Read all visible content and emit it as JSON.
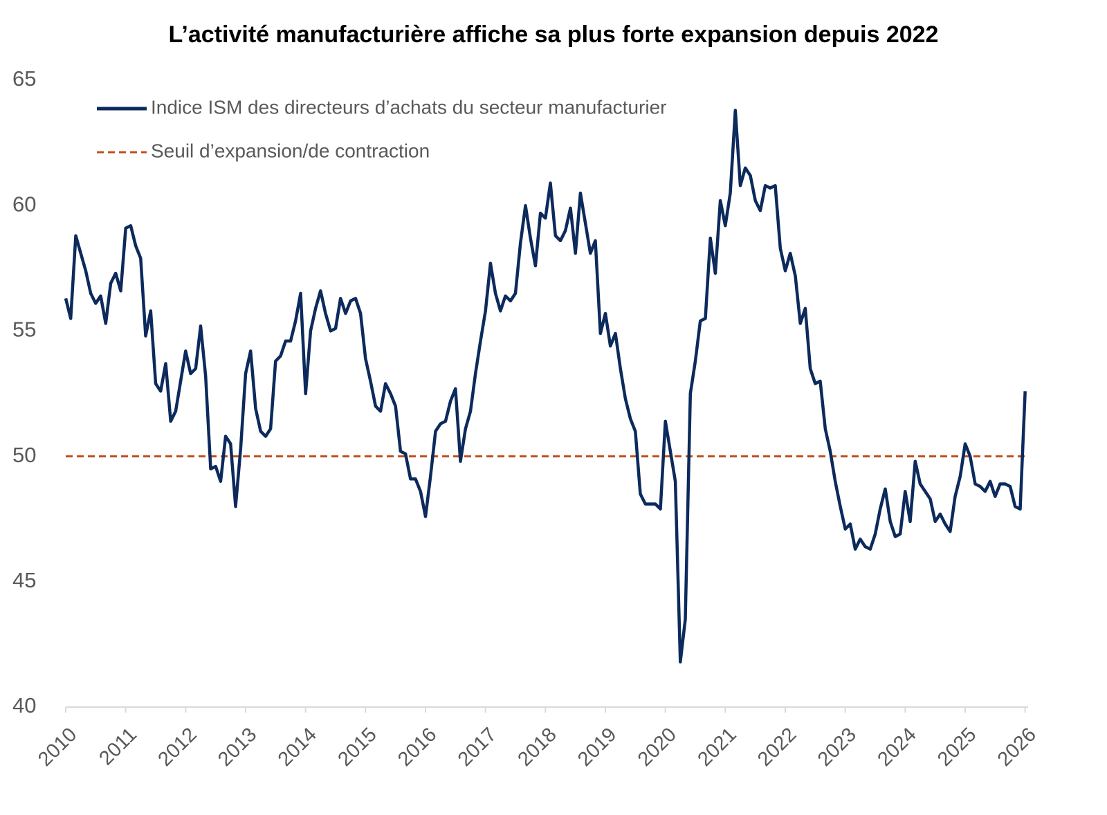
{
  "chart_data": {
    "type": "line",
    "title": "L’activité manufacturière affiche sa plus forte expansion depuis 2022",
    "x": [
      2010,
      2010.083,
      2010.167,
      2010.25,
      2010.333,
      2010.417,
      2010.5,
      2010.583,
      2010.667,
      2010.75,
      2010.833,
      2010.917,
      2011,
      2011.083,
      2011.167,
      2011.25,
      2011.333,
      2011.417,
      2011.5,
      2011.583,
      2011.667,
      2011.75,
      2011.833,
      2011.917,
      2012,
      2012.083,
      2012.167,
      2012.25,
      2012.333,
      2012.417,
      2012.5,
      2012.583,
      2012.667,
      2012.75,
      2012.833,
      2012.917,
      2013,
      2013.083,
      2013.167,
      2013.25,
      2013.333,
      2013.417,
      2013.5,
      2013.583,
      2013.667,
      2013.75,
      2013.833,
      2013.917,
      2014,
      2014.083,
      2014.167,
      2014.25,
      2014.333,
      2014.417,
      2014.5,
      2014.583,
      2014.667,
      2014.75,
      2014.833,
      2014.917,
      2015,
      2015.083,
      2015.167,
      2015.25,
      2015.333,
      2015.417,
      2015.5,
      2015.583,
      2015.667,
      2015.75,
      2015.833,
      2015.917,
      2016,
      2016.083,
      2016.167,
      2016.25,
      2016.333,
      2016.417,
      2016.5,
      2016.583,
      2016.667,
      2016.75,
      2016.833,
      2016.917,
      2017,
      2017.083,
      2017.167,
      2017.25,
      2017.333,
      2017.417,
      2017.5,
      2017.583,
      2017.667,
      2017.75,
      2017.833,
      2017.917,
      2018,
      2018.083,
      2018.167,
      2018.25,
      2018.333,
      2018.417,
      2018.5,
      2018.583,
      2018.667,
      2018.75,
      2018.833,
      2018.917,
      2019,
      2019.083,
      2019.167,
      2019.25,
      2019.333,
      2019.417,
      2019.5,
      2019.583,
      2019.667,
      2019.75,
      2019.833,
      2019.917,
      2020,
      2020.083,
      2020.167,
      2020.25,
      2020.333,
      2020.417,
      2020.5,
      2020.583,
      2020.667,
      2020.75,
      2020.833,
      2020.917,
      2021,
      2021.083,
      2021.167,
      2021.25,
      2021.333,
      2021.417,
      2021.5,
      2021.583,
      2021.667,
      2021.75,
      2021.833,
      2021.917,
      2022,
      2022.083,
      2022.167,
      2022.25,
      2022.333,
      2022.417,
      2022.5,
      2022.583,
      2022.667,
      2022.75,
      2022.833,
      2022.917,
      2023,
      2023.083,
      2023.167,
      2023.25,
      2023.333,
      2023.417,
      2023.5,
      2023.583,
      2023.667,
      2023.75,
      2023.833,
      2023.917,
      2024,
      2024.083,
      2024.167,
      2024.25,
      2024.333,
      2024.417,
      2024.5,
      2024.583,
      2024.667,
      2024.75,
      2024.833,
      2024.917,
      2025,
      2025.083,
      2025.167,
      2025.25,
      2025.333,
      2025.417,
      2025.5,
      2025.583,
      2025.667,
      2025.75,
      2025.833,
      2025.917,
      2026
    ],
    "series": [
      {
        "name": "Indice ISM des directeurs d’achats du secteur manufacturier",
        "color": "#0c2a5c",
        "values": [
          56.3,
          55.5,
          58.8,
          58.1,
          57.4,
          56.5,
          56.1,
          56.4,
          55.3,
          56.9,
          57.3,
          56.6,
          59.1,
          59.2,
          58.4,
          57.9,
          54.8,
          55.8,
          52.9,
          52.6,
          53.7,
          51.4,
          51.8,
          53.0,
          54.2,
          53.3,
          53.5,
          55.2,
          53.2,
          49.5,
          49.6,
          49.0,
          50.8,
          50.5,
          48.0,
          50.3,
          53.3,
          54.2,
          51.9,
          51.0,
          50.8,
          51.1,
          53.8,
          54.0,
          54.6,
          54.6,
          55.4,
          56.5,
          52.5,
          55.0,
          55.9,
          56.6,
          55.7,
          55.0,
          55.1,
          56.3,
          55.7,
          56.2,
          56.3,
          55.7,
          53.9,
          53.0,
          52.0,
          51.8,
          52.9,
          52.5,
          52.0,
          50.2,
          50.1,
          49.1,
          49.1,
          48.6,
          47.6,
          49.2,
          51.0,
          51.3,
          51.4,
          52.2,
          52.7,
          49.8,
          51.1,
          51.8,
          53.3,
          54.6,
          55.8,
          57.7,
          56.5,
          55.8,
          56.4,
          56.2,
          56.5,
          58.5,
          60.0,
          58.7,
          57.6,
          59.7,
          59.5,
          60.9,
          58.8,
          58.6,
          59.0,
          59.9,
          58.1,
          60.5,
          59.3,
          58.1,
          58.6,
          54.9,
          55.7,
          54.4,
          54.9,
          53.5,
          52.3,
          51.5,
          51.0,
          48.5,
          48.1,
          48.1,
          48.1,
          47.9,
          51.4,
          50.2,
          49.0,
          41.8,
          43.5,
          52.5,
          53.8,
          55.4,
          55.5,
          58.7,
          57.3,
          60.2,
          59.2,
          60.5,
          63.8,
          60.8,
          61.5,
          61.2,
          60.2,
          59.8,
          60.8,
          60.7,
          60.8,
          58.3,
          57.4,
          58.1,
          57.2,
          55.3,
          55.9,
          53.5,
          52.9,
          53.0,
          51.1,
          50.2,
          49.0,
          48.0,
          47.1,
          47.3,
          46.3,
          46.7,
          46.4,
          46.3,
          46.9,
          47.9,
          48.7,
          47.4,
          46.8,
          46.9,
          48.6,
          47.4,
          49.8,
          48.9,
          48.6,
          48.3,
          47.4,
          47.7,
          47.3,
          47.0,
          48.4,
          49.2,
          50.5,
          50.0,
          48.9,
          48.8,
          48.6,
          49.0,
          48.4,
          48.9,
          48.9,
          48.8,
          48.0,
          47.9,
          52.6
        ]
      }
    ],
    "threshold": {
      "name": "Seuil d’expansion/de contraction",
      "value": 50,
      "color": "#c0501f"
    },
    "xlim": [
      2010,
      2026.05
    ],
    "xticks": [
      2010,
      2011,
      2012,
      2013,
      2014,
      2015,
      2016,
      2017,
      2018,
      2019,
      2020,
      2021,
      2022,
      2023,
      2024,
      2025,
      2026
    ],
    "ylim": [
      40,
      65
    ],
    "yticks": [
      40,
      45,
      50,
      55,
      60,
      65
    ],
    "legend": "top-left"
  }
}
